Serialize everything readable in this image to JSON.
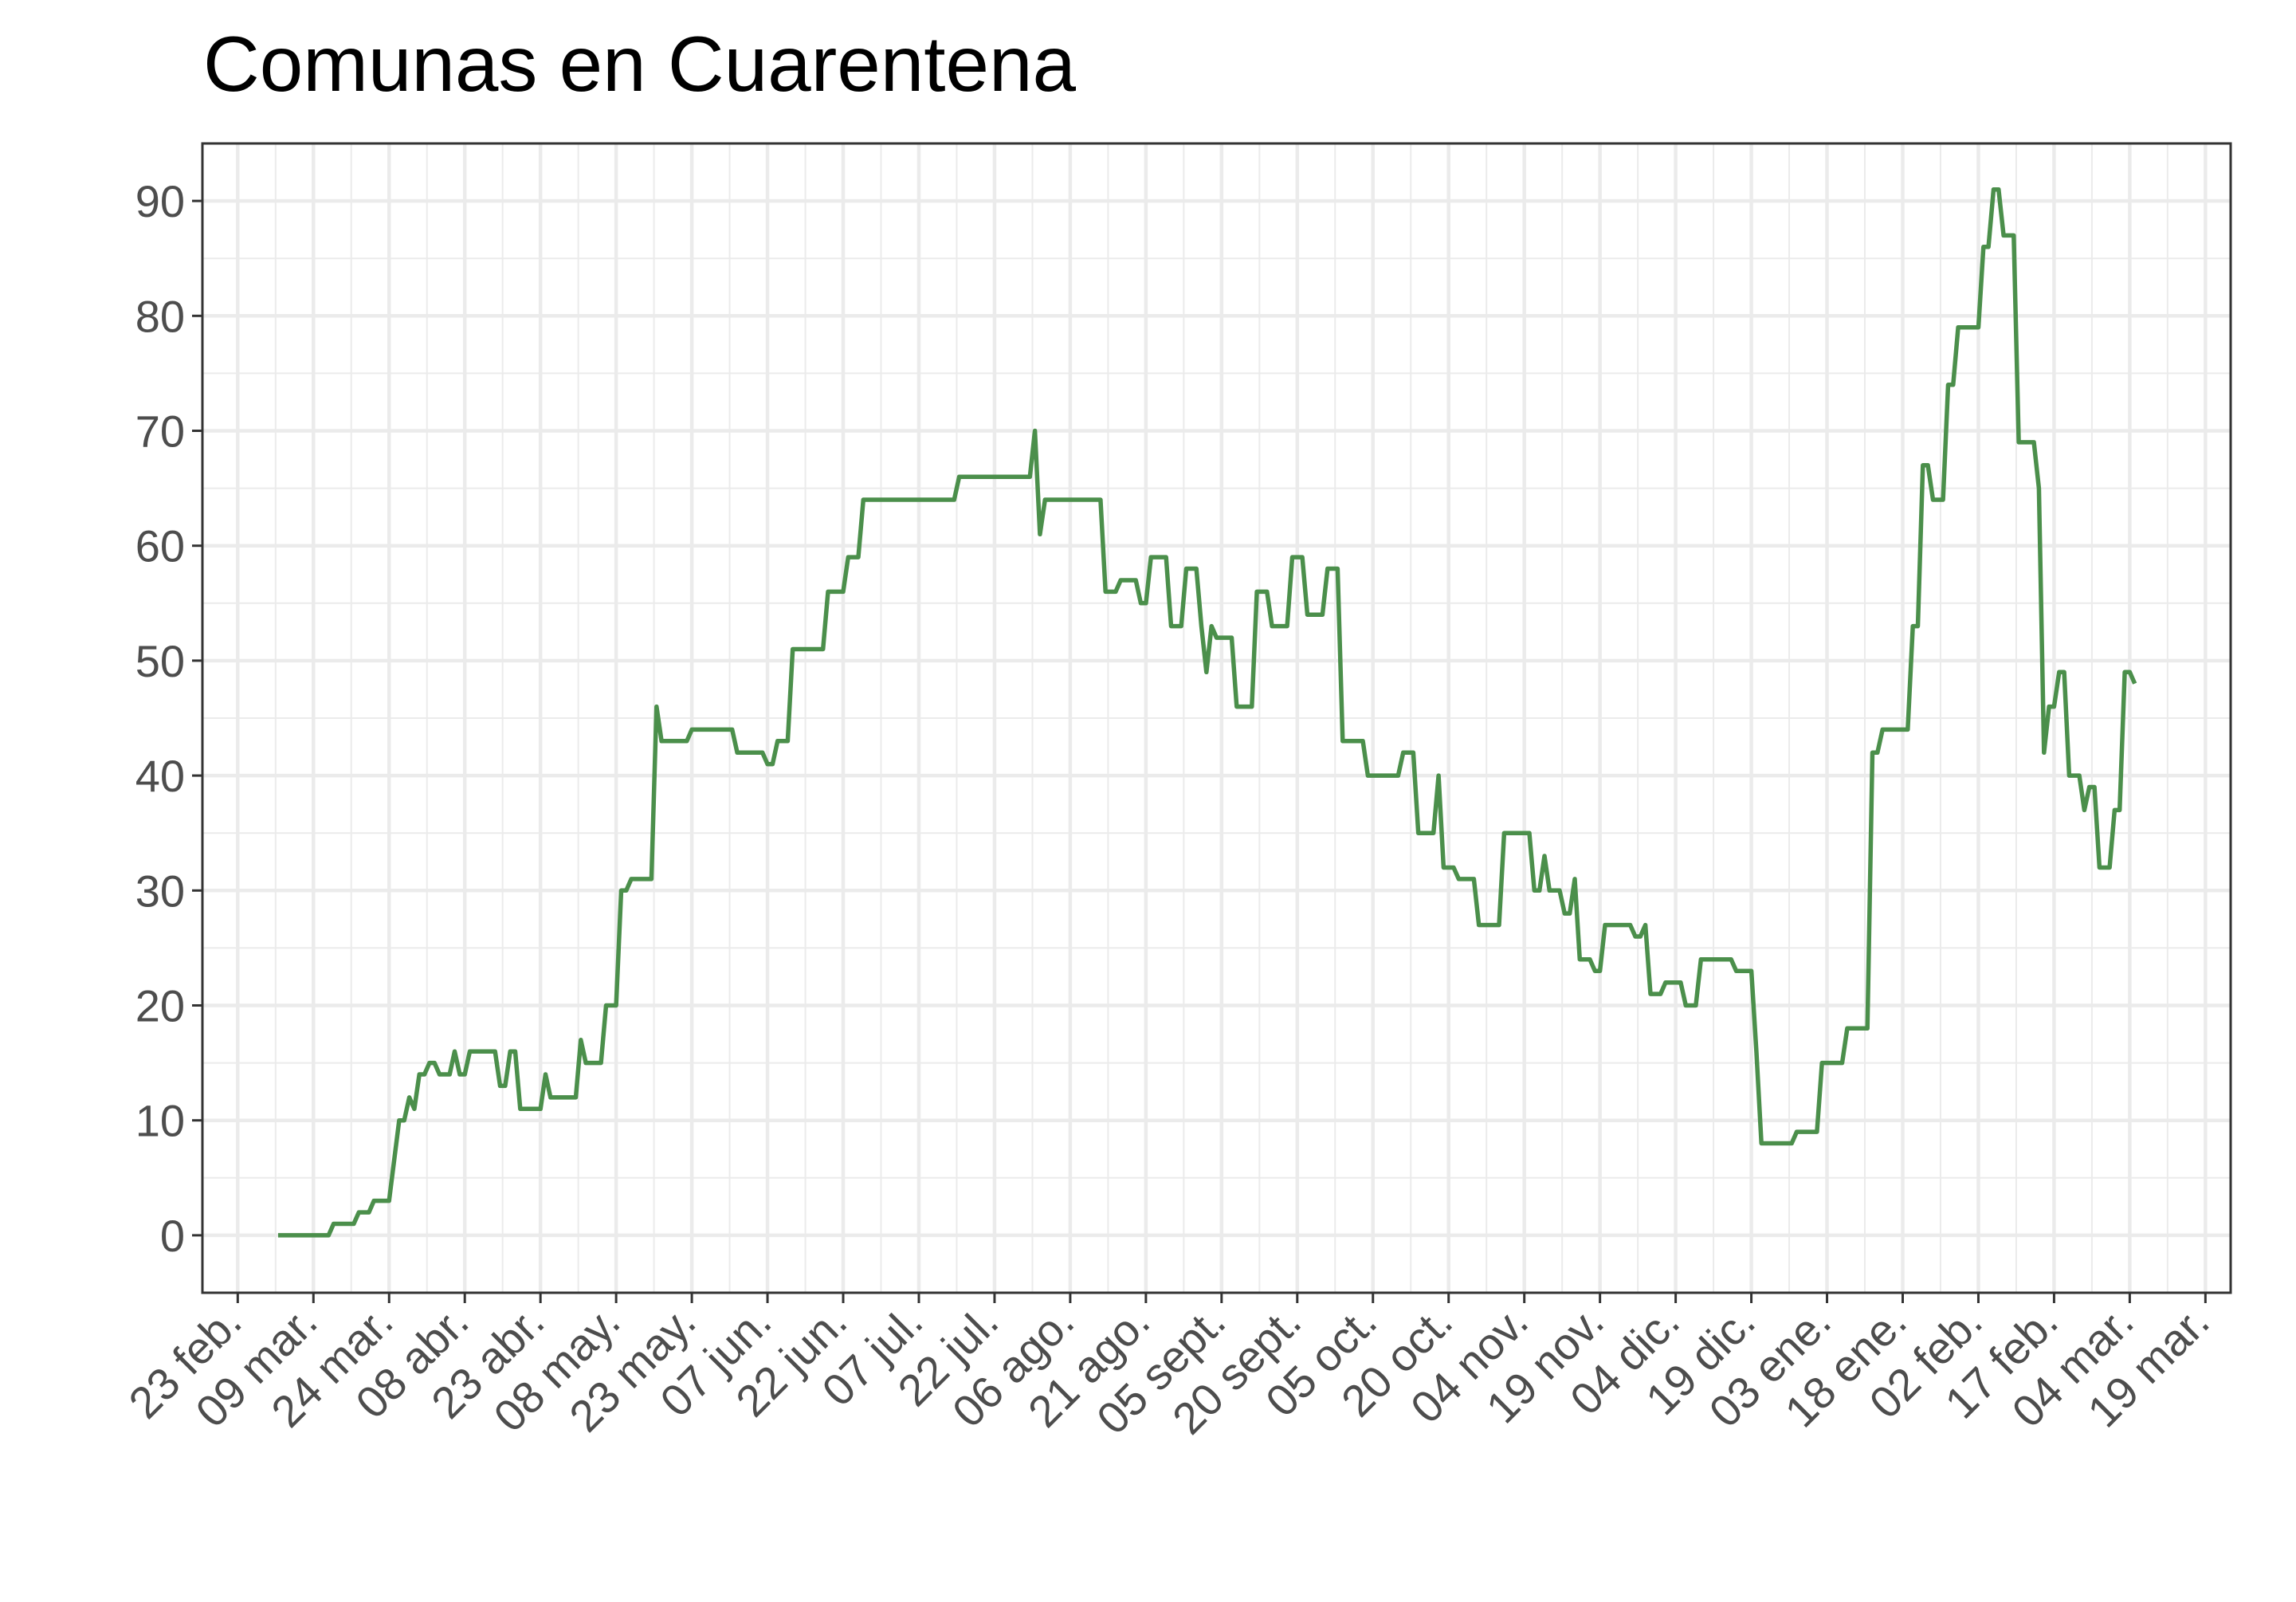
{
  "chart_data": {
    "type": "line",
    "title": "Comunas en Cuarentena",
    "xlabel": "",
    "ylabel": "",
    "ylim": [
      -5,
      95
    ],
    "xlim": [
      "2020-02-16",
      "2021-03-24"
    ],
    "grid": true,
    "legend": "none",
    "colors": {
      "line": "#4b8f4b",
      "grid": "#ebebeb",
      "panel_border": "#333333",
      "axis_text": "#4d4d4d"
    },
    "y_ticks": [
      0,
      10,
      20,
      30,
      40,
      50,
      60,
      70,
      80,
      90
    ],
    "x_ticks": [
      {
        "date": "2020-02-23",
        "label": "23 feb."
      },
      {
        "date": "2020-03-09",
        "label": "09 mar."
      },
      {
        "date": "2020-03-24",
        "label": "24 mar."
      },
      {
        "date": "2020-04-08",
        "label": "08 abr."
      },
      {
        "date": "2020-04-23",
        "label": "23 abr."
      },
      {
        "date": "2020-05-08",
        "label": "08 may."
      },
      {
        "date": "2020-05-23",
        "label": "23 may."
      },
      {
        "date": "2020-06-07",
        "label": "07 jun."
      },
      {
        "date": "2020-06-22",
        "label": "22 jun."
      },
      {
        "date": "2020-07-07",
        "label": "07 jul."
      },
      {
        "date": "2020-07-22",
        "label": "22 jul."
      },
      {
        "date": "2020-08-06",
        "label": "06 ago."
      },
      {
        "date": "2020-08-21",
        "label": "21 ago."
      },
      {
        "date": "2020-09-05",
        "label": "05 sept."
      },
      {
        "date": "2020-09-20",
        "label": "20 sept."
      },
      {
        "date": "2020-10-05",
        "label": "05 oct."
      },
      {
        "date": "2020-10-20",
        "label": "20 oct."
      },
      {
        "date": "2020-11-04",
        "label": "04 nov."
      },
      {
        "date": "2020-11-19",
        "label": "19 nov."
      },
      {
        "date": "2020-12-04",
        "label": "04 dic."
      },
      {
        "date": "2020-12-19",
        "label": "19 dic."
      },
      {
        "date": "2021-01-03",
        "label": "03 ene."
      },
      {
        "date": "2021-01-18",
        "label": "18 ene."
      },
      {
        "date": "2021-02-02",
        "label": "02 feb."
      },
      {
        "date": "2021-02-17",
        "label": "17 feb."
      },
      {
        "date": "2021-03-04",
        "label": "04 mar."
      },
      {
        "date": "2021-03-19",
        "label": "19 mar."
      }
    ],
    "series": [
      {
        "points": [
          [
            "2020-03-02",
            0
          ],
          [
            "2020-03-12",
            0
          ],
          [
            "2020-03-13",
            1
          ],
          [
            "2020-03-17",
            1
          ],
          [
            "2020-03-18",
            2
          ],
          [
            "2020-03-20",
            2
          ],
          [
            "2020-03-21",
            3
          ],
          [
            "2020-03-24",
            3
          ],
          [
            "2020-03-26",
            10
          ],
          [
            "2020-03-27",
            10
          ],
          [
            "2020-03-28",
            12
          ],
          [
            "2020-03-29",
            11
          ],
          [
            "2020-03-30",
            14
          ],
          [
            "2020-03-31",
            14
          ],
          [
            "2020-04-01",
            15
          ],
          [
            "2020-04-02",
            15
          ],
          [
            "2020-04-03",
            14
          ],
          [
            "2020-04-05",
            14
          ],
          [
            "2020-04-06",
            16
          ],
          [
            "2020-04-07",
            14
          ],
          [
            "2020-04-08",
            14
          ],
          [
            "2020-04-09",
            16
          ],
          [
            "2020-04-14",
            16
          ],
          [
            "2020-04-15",
            13
          ],
          [
            "2020-04-16",
            13
          ],
          [
            "2020-04-17",
            16
          ],
          [
            "2020-04-18",
            16
          ],
          [
            "2020-04-19",
            11
          ],
          [
            "2020-04-23",
            11
          ],
          [
            "2020-04-24",
            14
          ],
          [
            "2020-04-25",
            12
          ],
          [
            "2020-04-30",
            12
          ],
          [
            "2020-05-01",
            17
          ],
          [
            "2020-05-02",
            15
          ],
          [
            "2020-05-05",
            15
          ],
          [
            "2020-05-06",
            20
          ],
          [
            "2020-05-08",
            20
          ],
          [
            "2020-05-09",
            30
          ],
          [
            "2020-05-10",
            30
          ],
          [
            "2020-05-11",
            31
          ],
          [
            "2020-05-15",
            31
          ],
          [
            "2020-05-16",
            46
          ],
          [
            "2020-05-17",
            43
          ],
          [
            "2020-05-22",
            43
          ],
          [
            "2020-05-23",
            44
          ],
          [
            "2020-05-31",
            44
          ],
          [
            "2020-06-01",
            42
          ],
          [
            "2020-06-06",
            42
          ],
          [
            "2020-06-07",
            41
          ],
          [
            "2020-06-08",
            41
          ],
          [
            "2020-06-09",
            43
          ],
          [
            "2020-06-11",
            43
          ],
          [
            "2020-06-12",
            51
          ],
          [
            "2020-06-18",
            51
          ],
          [
            "2020-06-19",
            56
          ],
          [
            "2020-06-22",
            56
          ],
          [
            "2020-06-23",
            59
          ],
          [
            "2020-06-25",
            59
          ],
          [
            "2020-06-26",
            64
          ],
          [
            "2020-07-14",
            64
          ],
          [
            "2020-07-15",
            66
          ],
          [
            "2020-07-29",
            66
          ],
          [
            "2020-07-30",
            70
          ],
          [
            "2020-07-31",
            61
          ],
          [
            "2020-08-01",
            64
          ],
          [
            "2020-08-12",
            64
          ],
          [
            "2020-08-13",
            56
          ],
          [
            "2020-08-15",
            56
          ],
          [
            "2020-08-16",
            57
          ],
          [
            "2020-08-19",
            57
          ],
          [
            "2020-08-20",
            55
          ],
          [
            "2020-08-21",
            55
          ],
          [
            "2020-08-22",
            59
          ],
          [
            "2020-08-25",
            59
          ],
          [
            "2020-08-26",
            53
          ],
          [
            "2020-08-28",
            53
          ],
          [
            "2020-08-29",
            58
          ],
          [
            "2020-08-31",
            58
          ],
          [
            "2020-09-01",
            53
          ],
          [
            "2020-09-02",
            49
          ],
          [
            "2020-09-03",
            53
          ],
          [
            "2020-09-04",
            52
          ],
          [
            "2020-09-07",
            52
          ],
          [
            "2020-09-08",
            46
          ],
          [
            "2020-09-11",
            46
          ],
          [
            "2020-09-12",
            56
          ],
          [
            "2020-09-14",
            56
          ],
          [
            "2020-09-15",
            53
          ],
          [
            "2020-09-18",
            53
          ],
          [
            "2020-09-19",
            59
          ],
          [
            "2020-09-21",
            59
          ],
          [
            "2020-09-22",
            54
          ],
          [
            "2020-09-25",
            54
          ],
          [
            "2020-09-26",
            58
          ],
          [
            "2020-09-28",
            58
          ],
          [
            "2020-09-29",
            43
          ],
          [
            "2020-10-03",
            43
          ],
          [
            "2020-10-04",
            40
          ],
          [
            "2020-10-10",
            40
          ],
          [
            "2020-10-11",
            42
          ],
          [
            "2020-10-13",
            42
          ],
          [
            "2020-10-14",
            35
          ],
          [
            "2020-10-17",
            35
          ],
          [
            "2020-10-18",
            40
          ],
          [
            "2020-10-19",
            32
          ],
          [
            "2020-10-21",
            32
          ],
          [
            "2020-10-22",
            31
          ],
          [
            "2020-10-25",
            31
          ],
          [
            "2020-10-26",
            27
          ],
          [
            "2020-10-30",
            27
          ],
          [
            "2020-10-31",
            35
          ],
          [
            "2020-11-05",
            35
          ],
          [
            "2020-11-06",
            30
          ],
          [
            "2020-11-07",
            30
          ],
          [
            "2020-11-08",
            33
          ],
          [
            "2020-11-09",
            30
          ],
          [
            "2020-11-11",
            30
          ],
          [
            "2020-11-12",
            28
          ],
          [
            "2020-11-13",
            28
          ],
          [
            "2020-11-14",
            31
          ],
          [
            "2020-11-15",
            24
          ],
          [
            "2020-11-17",
            24
          ],
          [
            "2020-11-18",
            23
          ],
          [
            "2020-11-19",
            23
          ],
          [
            "2020-11-20",
            27
          ],
          [
            "2020-11-25",
            27
          ],
          [
            "2020-11-26",
            26
          ],
          [
            "2020-11-27",
            26
          ],
          [
            "2020-11-28",
            27
          ],
          [
            "2020-11-29",
            21
          ],
          [
            "2020-12-01",
            21
          ],
          [
            "2020-12-02",
            22
          ],
          [
            "2020-12-05",
            22
          ],
          [
            "2020-12-06",
            20
          ],
          [
            "2020-12-08",
            20
          ],
          [
            "2020-12-09",
            24
          ],
          [
            "2020-12-15",
            24
          ],
          [
            "2020-12-16",
            23
          ],
          [
            "2020-12-19",
            23
          ],
          [
            "2020-12-20",
            16
          ],
          [
            "2020-12-21",
            8
          ],
          [
            "2020-12-27",
            8
          ],
          [
            "2020-12-28",
            9
          ],
          [
            "2021-01-01",
            9
          ],
          [
            "2021-01-02",
            15
          ],
          [
            "2021-01-06",
            15
          ],
          [
            "2021-01-07",
            18
          ],
          [
            "2021-01-11",
            18
          ],
          [
            "2021-01-12",
            42
          ],
          [
            "2021-01-13",
            42
          ],
          [
            "2021-01-14",
            44
          ],
          [
            "2021-01-19",
            44
          ],
          [
            "2021-01-20",
            53
          ],
          [
            "2021-01-21",
            53
          ],
          [
            "2021-01-22",
            67
          ],
          [
            "2021-01-23",
            67
          ],
          [
            "2021-01-24",
            64
          ],
          [
            "2021-01-26",
            64
          ],
          [
            "2021-01-27",
            74
          ],
          [
            "2021-01-28",
            74
          ],
          [
            "2021-01-29",
            79
          ],
          [
            "2021-02-02",
            79
          ],
          [
            "2021-02-03",
            86
          ],
          [
            "2021-02-04",
            86
          ],
          [
            "2021-02-05",
            91
          ],
          [
            "2021-02-06",
            91
          ],
          [
            "2021-02-07",
            87
          ],
          [
            "2021-02-09",
            87
          ],
          [
            "2021-02-10",
            69
          ],
          [
            "2021-02-13",
            69
          ],
          [
            "2021-02-14",
            65
          ],
          [
            "2021-02-15",
            42
          ],
          [
            "2021-02-16",
            46
          ],
          [
            "2021-02-17",
            46
          ],
          [
            "2021-02-18",
            49
          ],
          [
            "2021-02-19",
            49
          ],
          [
            "2021-02-20",
            40
          ],
          [
            "2021-02-22",
            40
          ],
          [
            "2021-02-23",
            37
          ],
          [
            "2021-02-24",
            39
          ],
          [
            "2021-02-25",
            39
          ],
          [
            "2021-02-26",
            32
          ],
          [
            "2021-02-28",
            32
          ],
          [
            "2021-03-01",
            37
          ],
          [
            "2021-03-02",
            37
          ],
          [
            "2021-03-03",
            49
          ],
          [
            "2021-03-04",
            49
          ],
          [
            "2021-03-05",
            48
          ]
        ]
      }
    ]
  }
}
